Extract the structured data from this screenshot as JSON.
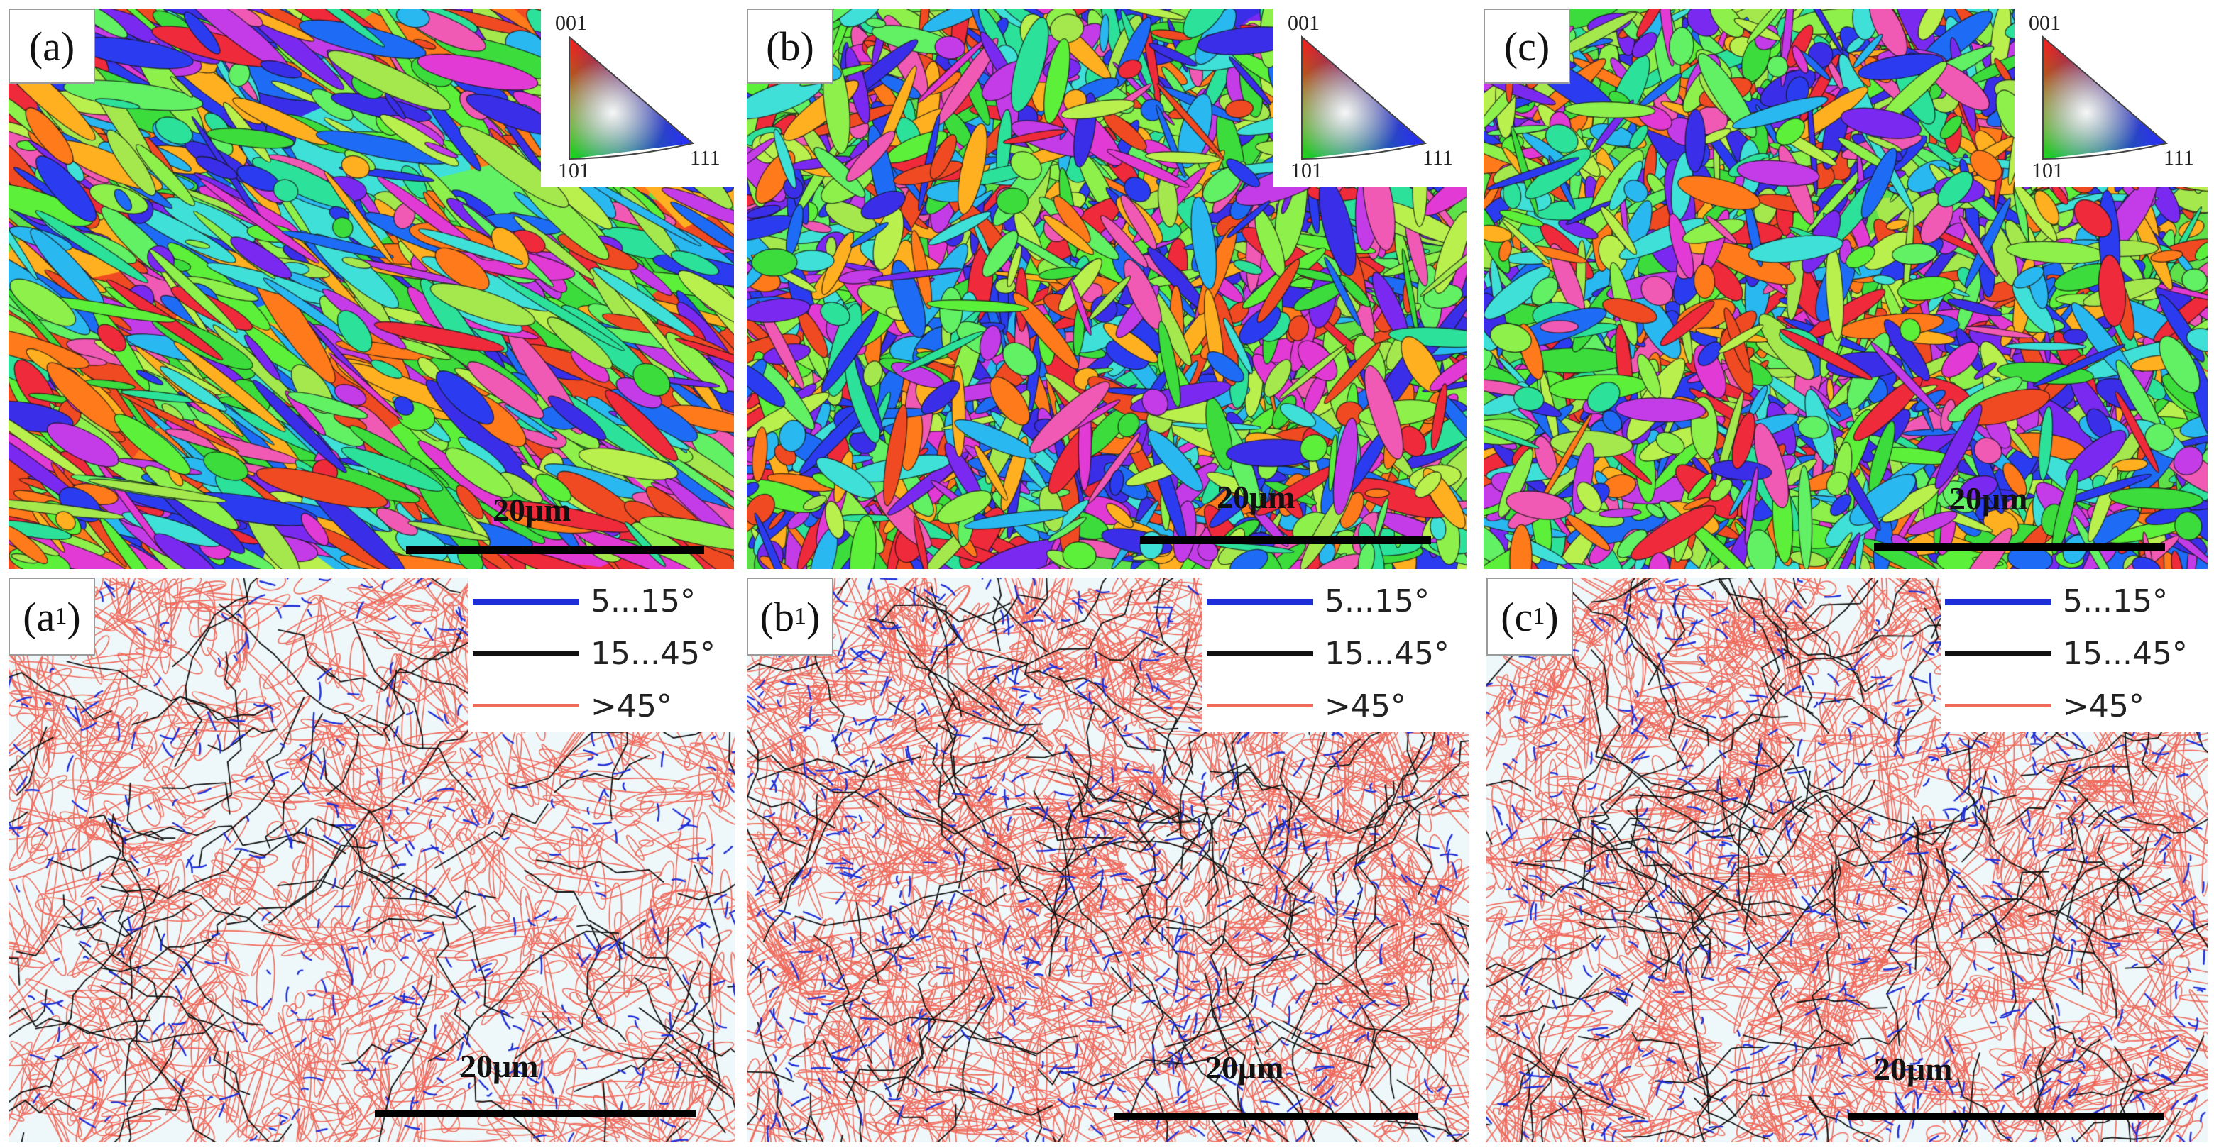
{
  "colors": {
    "low_angle": "#1f2fd8",
    "medium_angle": "#111111",
    "high_angle": "#f06a5c",
    "boundary_background": "#eef8fa"
  },
  "ipf_key": {
    "labels": [
      "001",
      "101",
      "111"
    ]
  },
  "panels": [
    {
      "label": "(a)",
      "scale_text": "20μm",
      "kind": "ipf_map"
    },
    {
      "label": "(b)",
      "scale_text": "20μm",
      "kind": "ipf_map"
    },
    {
      "label": "(c)",
      "scale_text": "20μm",
      "kind": "ipf_map"
    },
    {
      "label_main": "(a",
      "label_sub": "1",
      "label_end": ")",
      "scale_text": "20μm",
      "kind": "boundary_map"
    },
    {
      "label_main": "(b",
      "label_sub": "1",
      "label_end": ")",
      "scale_text": "20μm",
      "kind": "boundary_map"
    },
    {
      "label_main": "(c",
      "label_sub": "1",
      "label_end": ")",
      "scale_text": "20μm",
      "kind": "boundary_map"
    }
  ],
  "legend": {
    "items": [
      {
        "label": "5...15°",
        "color_key": "low_angle"
      },
      {
        "label": "15...45°",
        "color_key": "medium_angle"
      },
      {
        "label": ">45°",
        "color_key": "high_angle"
      }
    ]
  }
}
